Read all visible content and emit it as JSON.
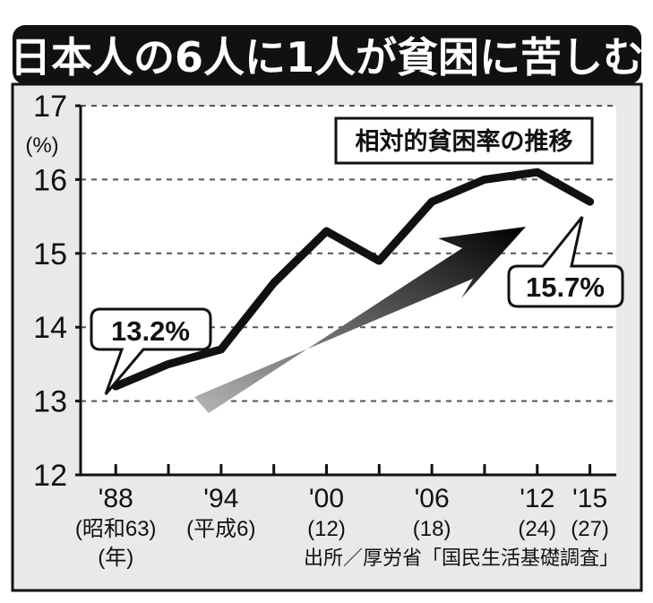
{
  "title": "日本人の6人に1人が貧困に苦しむ",
  "source": "出所／厚労省「国民生活基礎調査」",
  "chart_data": {
    "type": "line",
    "title": "相対的貧困率の推移",
    "ylabel": "(%)",
    "ylim": [
      12,
      17
    ],
    "yticks": [
      "12",
      "13",
      "14",
      "15",
      "16",
      "17"
    ],
    "grid": true,
    "x": [
      1988,
      1991,
      1994,
      1997,
      2000,
      2003,
      2006,
      2009,
      2012,
      2015
    ],
    "values": [
      13.2,
      13.5,
      13.7,
      14.6,
      15.3,
      14.9,
      15.7,
      16.0,
      16.1,
      15.7
    ],
    "xlabels": [
      {
        "x": 1988,
        "line1": "'88",
        "line2": "(昭和63)",
        "line3": "(年)"
      },
      {
        "x": 1994,
        "line1": "'94",
        "line2": "(平成6)",
        "line3": ""
      },
      {
        "x": 2000,
        "line1": "'00",
        "line2": "(12)",
        "line3": ""
      },
      {
        "x": 2006,
        "line1": "'06",
        "line2": "(18)",
        "line3": ""
      },
      {
        "x": 2012,
        "line1": "'12",
        "line2": "(24)",
        "line3": ""
      },
      {
        "x": 2015,
        "line1": "'15",
        "line2": "(27)",
        "line3": ""
      }
    ],
    "xminor": [
      1991,
      1997,
      2003,
      2009
    ],
    "annotations": {
      "start": "13.2%",
      "end": "15.7%"
    }
  }
}
